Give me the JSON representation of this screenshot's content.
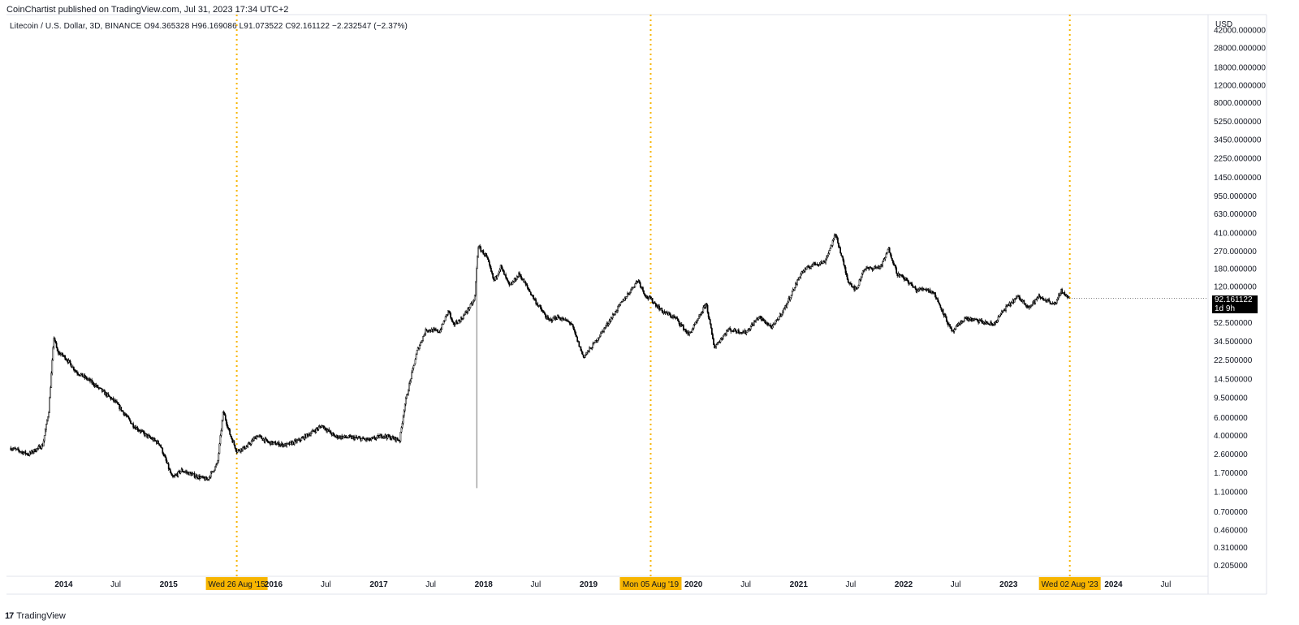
{
  "header": {
    "publisher": "CoinChartist published on TradingView.com, Jul 31, 2023 17:34 UTC+2",
    "symbol_line": "Litecoin / U.S. Dollar, 3D, BINANCE  O94.365328  H96.169086  L91.073522  C92.161122  −2.232547 (−2.37%)"
  },
  "price_tag": {
    "price": "92.161122",
    "countdown": "1d 9h"
  },
  "footer": {
    "logo_glyph": "17",
    "brand": "TradingView"
  },
  "colors": {
    "accent": "#f7b500",
    "candle": "#000000",
    "grid": "#e0e3eb",
    "text": "#131722"
  },
  "chart_data": {
    "type": "line",
    "series": [
      {
        "values": [
          {
            "x": "2013-07-01",
            "y": 3.0
          },
          {
            "x": "2013-09-01",
            "y": 2.6
          },
          {
            "x": "2013-10-20",
            "y": 3.2
          },
          {
            "x": "2013-11-10",
            "y": 7.0
          },
          {
            "x": "2013-11-28",
            "y": 38.0
          },
          {
            "x": "2013-12-10",
            "y": 27.0
          },
          {
            "x": "2014-01-05",
            "y": 24.0
          },
          {
            "x": "2014-02-15",
            "y": 17.0
          },
          {
            "x": "2014-04-01",
            "y": 14.0
          },
          {
            "x": "2014-05-15",
            "y": 11.0
          },
          {
            "x": "2014-07-01",
            "y": 8.5
          },
          {
            "x": "2014-09-01",
            "y": 5.0
          },
          {
            "x": "2014-10-15",
            "y": 4.0
          },
          {
            "x": "2014-12-01",
            "y": 3.3
          },
          {
            "x": "2015-01-14",
            "y": 1.5
          },
          {
            "x": "2015-02-15",
            "y": 1.8
          },
          {
            "x": "2015-04-01",
            "y": 1.6
          },
          {
            "x": "2015-05-15",
            "y": 1.45
          },
          {
            "x": "2015-06-20",
            "y": 2.1
          },
          {
            "x": "2015-07-10",
            "y": 7.0
          },
          {
            "x": "2015-08-01",
            "y": 4.2
          },
          {
            "x": "2015-08-26",
            "y": 2.8
          },
          {
            "x": "2015-10-01",
            "y": 3.1
          },
          {
            "x": "2015-11-05",
            "y": 4.0
          },
          {
            "x": "2015-12-15",
            "y": 3.4
          },
          {
            "x": "2016-02-15",
            "y": 3.2
          },
          {
            "x": "2016-04-01",
            "y": 3.6
          },
          {
            "x": "2016-06-18",
            "y": 5.0
          },
          {
            "x": "2016-08-01",
            "y": 3.9
          },
          {
            "x": "2016-10-01",
            "y": 3.8
          },
          {
            "x": "2016-12-01",
            "y": 3.6
          },
          {
            "x": "2017-01-15",
            "y": 4.0
          },
          {
            "x": "2017-03-15",
            "y": 3.6
          },
          {
            "x": "2017-04-01",
            "y": 8.0
          },
          {
            "x": "2017-05-15",
            "y": 28.0
          },
          {
            "x": "2017-06-15",
            "y": 45.0
          },
          {
            "x": "2017-08-01",
            "y": 43.0
          },
          {
            "x": "2017-09-01",
            "y": 70.0
          },
          {
            "x": "2017-09-15",
            "y": 50.0
          },
          {
            "x": "2017-10-15",
            "y": 57.0
          },
          {
            "x": "2017-11-30",
            "y": 88.0
          },
          {
            "x": "2017-12-12",
            "y": 300.0
          },
          {
            "x": "2018-01-10",
            "y": 240.0
          },
          {
            "x": "2018-02-06",
            "y": 135.0
          },
          {
            "x": "2018-03-01",
            "y": 190.0
          },
          {
            "x": "2018-04-01",
            "y": 120.0
          },
          {
            "x": "2018-05-05",
            "y": 160.0
          },
          {
            "x": "2018-07-01",
            "y": 85.0
          },
          {
            "x": "2018-08-15",
            "y": 55.0
          },
          {
            "x": "2018-09-15",
            "y": 60.0
          },
          {
            "x": "2018-11-01",
            "y": 52.0
          },
          {
            "x": "2018-12-14",
            "y": 24.0
          },
          {
            "x": "2019-01-15",
            "y": 31.0
          },
          {
            "x": "2019-03-01",
            "y": 48.0
          },
          {
            "x": "2019-04-15",
            "y": 75.0
          },
          {
            "x": "2019-06-22",
            "y": 140.0
          },
          {
            "x": "2019-07-20",
            "y": 95.0
          },
          {
            "x": "2019-08-05",
            "y": 90.0
          },
          {
            "x": "2019-09-15",
            "y": 68.0
          },
          {
            "x": "2019-11-01",
            "y": 58.0
          },
          {
            "x": "2019-12-15",
            "y": 40.0
          },
          {
            "x": "2020-01-15",
            "y": 55.0
          },
          {
            "x": "2020-02-14",
            "y": 82.0
          },
          {
            "x": "2020-03-13",
            "y": 30.0
          },
          {
            "x": "2020-05-01",
            "y": 45.0
          },
          {
            "x": "2020-07-01",
            "y": 42.0
          },
          {
            "x": "2020-08-15",
            "y": 60.0
          },
          {
            "x": "2020-10-01",
            "y": 47.0
          },
          {
            "x": "2020-11-15",
            "y": 75.0
          },
          {
            "x": "2021-01-10",
            "y": 165.0
          },
          {
            "x": "2021-02-20",
            "y": 200.0
          },
          {
            "x": "2021-04-01",
            "y": 210.0
          },
          {
            "x": "2021-05-10",
            "y": 400.0
          },
          {
            "x": "2021-06-20",
            "y": 140.0
          },
          {
            "x": "2021-07-20",
            "y": 110.0
          },
          {
            "x": "2021-08-15",
            "y": 180.0
          },
          {
            "x": "2021-09-01",
            "y": 180.0
          },
          {
            "x": "2021-10-15",
            "y": 190.0
          },
          {
            "x": "2021-11-10",
            "y": 285.0
          },
          {
            "x": "2021-12-10",
            "y": 160.0
          },
          {
            "x": "2022-01-10",
            "y": 140.0
          },
          {
            "x": "2022-02-15",
            "y": 110.0
          },
          {
            "x": "2022-03-15",
            "y": 115.0
          },
          {
            "x": "2022-04-15",
            "y": 105.0
          },
          {
            "x": "2022-05-15",
            "y": 70.0
          },
          {
            "x": "2022-06-18",
            "y": 42.0
          },
          {
            "x": "2022-08-01",
            "y": 58.0
          },
          {
            "x": "2022-09-15",
            "y": 55.0
          },
          {
            "x": "2022-11-09",
            "y": 50.0
          },
          {
            "x": "2022-12-15",
            "y": 70.0
          },
          {
            "x": "2023-02-01",
            "y": 95.0
          },
          {
            "x": "2023-03-15",
            "y": 75.0
          },
          {
            "x": "2023-04-15",
            "y": 95.0
          },
          {
            "x": "2023-06-15",
            "y": 80.0
          },
          {
            "x": "2023-07-01",
            "y": 110.0
          },
          {
            "x": "2023-07-31",
            "y": 92.161122
          }
        ],
        "spike_lows": [
          {
            "x": "2017-12-08",
            "y": 1.2
          }
        ]
      }
    ],
    "x_range": [
      "2013-06-16",
      "2024-11-25"
    ],
    "ylim": [
      0.16,
      60000
    ],
    "y_scale": "log",
    "y_unit": "USD",
    "y_ticks": [
      "42000.000000",
      "28000.000000",
      "18000.000000",
      "12000.000000",
      "8000.000000",
      "5250.000000",
      "3450.000000",
      "2250.000000",
      "1450.000000",
      "950.000000",
      "630.000000",
      "410.000000",
      "270.000000",
      "180.000000",
      "120.000000",
      "52.500000",
      "34.500000",
      "22.500000",
      "14.500000",
      "9.500000",
      "6.000000",
      "4.000000",
      "2.600000",
      "1.700000",
      "1.100000",
      "0.700000",
      "0.460000",
      "0.310000",
      "0.205000"
    ],
    "x_ticks": [
      {
        "label": "2014",
        "date": "2014-01-01",
        "bold": true
      },
      {
        "label": "Jul",
        "date": "2014-07-01",
        "bold": false
      },
      {
        "label": "2015",
        "date": "2015-01-01",
        "bold": true
      },
      {
        "label": "2016",
        "date": "2016-01-01",
        "bold": true
      },
      {
        "label": "Jul",
        "date": "2016-07-01",
        "bold": false
      },
      {
        "label": "2017",
        "date": "2017-01-01",
        "bold": true
      },
      {
        "label": "Jul",
        "date": "2017-07-01",
        "bold": false
      },
      {
        "label": "2018",
        "date": "2018-01-01",
        "bold": true
      },
      {
        "label": "Jul",
        "date": "2018-07-01",
        "bold": false
      },
      {
        "label": "2019",
        "date": "2019-01-01",
        "bold": true
      },
      {
        "label": "2020",
        "date": "2020-01-01",
        "bold": true
      },
      {
        "label": "Jul",
        "date": "2020-07-01",
        "bold": false
      },
      {
        "label": "2021",
        "date": "2021-01-01",
        "bold": true
      },
      {
        "label": "Jul",
        "date": "2021-07-01",
        "bold": false
      },
      {
        "label": "2022",
        "date": "2022-01-01",
        "bold": true
      },
      {
        "label": "Jul",
        "date": "2022-07-01",
        "bold": false
      },
      {
        "label": "2023",
        "date": "2023-01-01",
        "bold": true
      },
      {
        "label": "2024",
        "date": "2024-01-01",
        "bold": true
      },
      {
        "label": "Jul",
        "date": "2024-07-01",
        "bold": false
      }
    ],
    "markers": [
      {
        "date": "2015-08-26",
        "label": "Wed 26 Aug '15"
      },
      {
        "date": "2019-08-05",
        "label": "Mon 05 Aug '19"
      },
      {
        "date": "2023-08-02",
        "label": "Wed 02 Aug '23"
      }
    ],
    "last_price": 92.161122,
    "grid": false,
    "legend": "none"
  }
}
